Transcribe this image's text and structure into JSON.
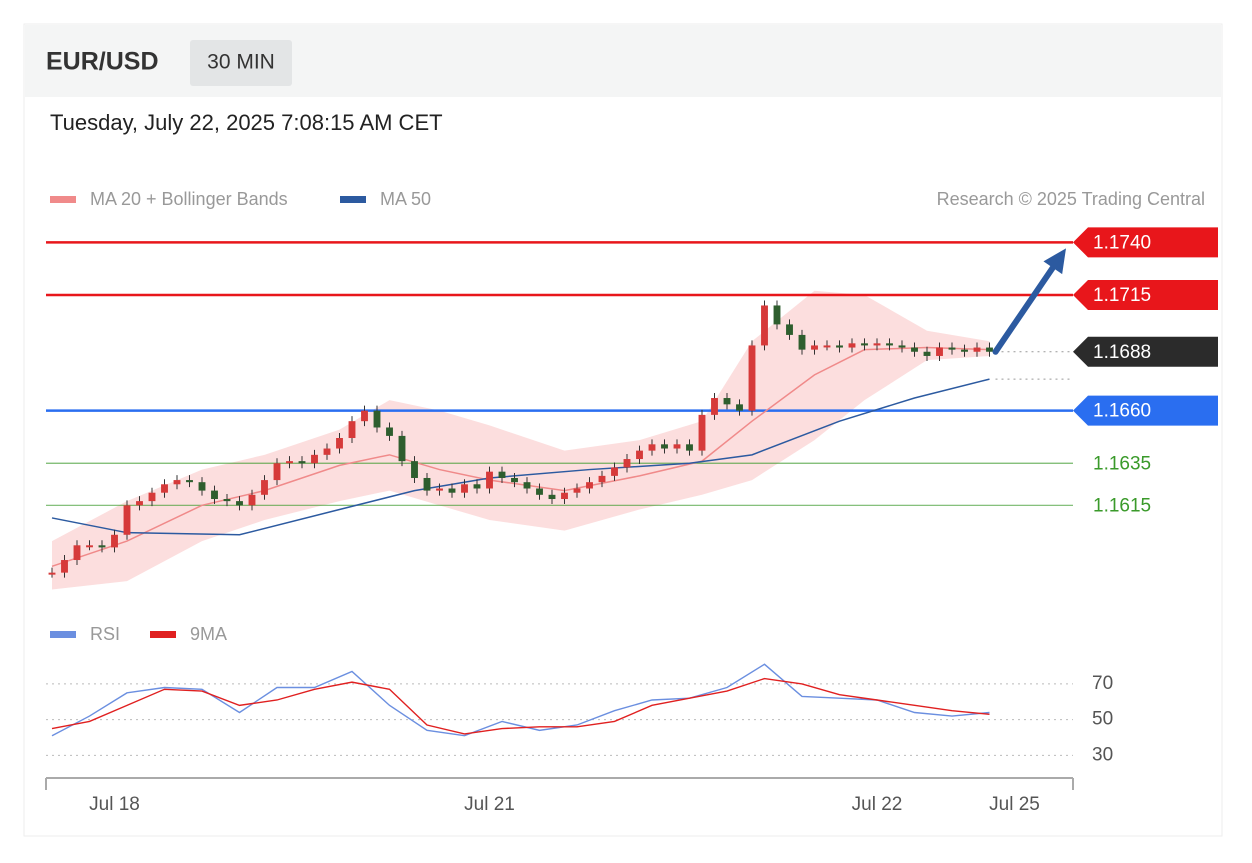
{
  "chart_data": {
    "type": "candlestick",
    "title": "EUR/USD",
    "timeframe": "30 MIN",
    "subtitle": "Tuesday, July 22, 2025 7:08:15 AM CET",
    "credit": "Research © 2025 Trading Central",
    "xlim": [
      0,
      82
    ],
    "xticks": [
      {
        "value": 5,
        "label": "Jul 18"
      },
      {
        "value": 35,
        "label": "Jul 21"
      },
      {
        "value": 66,
        "label": "Jul 22"
      },
      {
        "value": 77,
        "label": "Jul 25"
      }
    ],
    "ylim": [
      1.157,
      1.1753
    ],
    "up_color": "#d63a3a",
    "down_color": "#2e5e2e",
    "close": [
      1.1583,
      1.1589,
      1.1596,
      1.1596,
      1.1595,
      1.1601,
      1.1615,
      1.1617,
      1.1621,
      1.1625,
      1.1627,
      1.1626,
      1.1622,
      1.1618,
      1.1617,
      1.1615,
      1.162,
      1.1627,
      1.1635,
      1.1636,
      1.1635,
      1.1639,
      1.1642,
      1.1647,
      1.1655,
      1.166,
      1.1652,
      1.1648,
      1.1636,
      1.1628,
      1.1622,
      1.1623,
      1.1621,
      1.1625,
      1.1623,
      1.1631,
      1.1628,
      1.1626,
      1.1623,
      1.162,
      1.1618,
      1.1621,
      1.1623,
      1.1626,
      1.1629,
      1.1633,
      1.1637,
      1.1641,
      1.1644,
      1.1642,
      1.1644,
      1.1641,
      1.1658,
      1.1666,
      1.1663,
      1.166,
      1.1691,
      1.171,
      1.1701,
      1.1696,
      1.1689,
      1.1691,
      1.1691,
      1.169,
      1.1692,
      1.1691,
      1.1692,
      1.1691,
      1.169,
      1.1688,
      1.1686,
      1.169,
      1.1689,
      1.1688,
      1.169,
      1.1688
    ],
    "overlays": [
      {
        "name": "MA 20 + Bollinger Bands",
        "color": "#f08a8a",
        "band_color": "#fbd3d3",
        "x": [
          0,
          6,
          12,
          17,
          23,
          27,
          31,
          35,
          41,
          47,
          52,
          56,
          61,
          65,
          70,
          75
        ],
        "values": [
          1.1586,
          1.1598,
          1.1615,
          1.1622,
          1.1634,
          1.1639,
          1.1632,
          1.1627,
          1.1622,
          1.1629,
          1.1636,
          1.1655,
          1.1677,
          1.1689,
          1.169,
          1.1689
        ],
        "upper": [
          1.1598,
          1.1617,
          1.1632,
          1.1639,
          1.1651,
          1.1665,
          1.166,
          1.1653,
          1.1641,
          1.1646,
          1.1655,
          1.1693,
          1.1717,
          1.1715,
          1.1698,
          1.1693
        ],
        "lower": [
          1.1575,
          1.1579,
          1.1598,
          1.1608,
          1.1617,
          1.1622,
          1.1615,
          1.1608,
          1.1603,
          1.1613,
          1.162,
          1.1627,
          1.1646,
          1.1665,
          1.1684,
          1.1686
        ]
      },
      {
        "name": "MA 50",
        "color": "#2c5aa0",
        "x": [
          0,
          6,
          15,
          23,
          29,
          35,
          43,
          51,
          56,
          63,
          69,
          75
        ],
        "values": [
          1.1609,
          1.1602,
          1.1601,
          1.1613,
          1.1622,
          1.1628,
          1.1632,
          1.1635,
          1.1639,
          1.1655,
          1.1666,
          1.1675
        ]
      }
    ],
    "levels": [
      {
        "value": 1.174,
        "label": "1.1740",
        "color": "#e8161b",
        "tag": true,
        "line": "solid"
      },
      {
        "value": 1.1715,
        "color": "#e8161b",
        "tag": true,
        "line": "solid"
      },
      {
        "value": 1.1688,
        "color": "#2b2b2b",
        "tag": true,
        "line": "dotted"
      },
      {
        "value": 1.166,
        "label": "1.1660",
        "color": "#2a6ef0",
        "tag": true,
        "line": "solid"
      },
      {
        "value": 1.1635,
        "color": "#3a9a2a",
        "tag": false,
        "line": "solid"
      },
      {
        "value": 1.1615,
        "color": "#3a9a2a",
        "tag": false,
        "line": "solid"
      }
    ],
    "rsi": {
      "ylim": [
        19,
        89
      ],
      "yticks": [
        30,
        50,
        70
      ],
      "series": [
        {
          "name": "RSI",
          "color": "#6b8fe0",
          "x": [
            0,
            3,
            6,
            9,
            12,
            15,
            18,
            21,
            24,
            27,
            30,
            33,
            36,
            39,
            42,
            45,
            48,
            51,
            54,
            57,
            60,
            63,
            66,
            69,
            72,
            75
          ],
          "values": [
            41,
            52,
            65,
            68,
            67,
            54,
            68,
            68,
            77,
            58,
            44,
            41,
            49,
            44,
            47,
            55,
            61,
            62,
            68,
            81,
            63,
            62,
            61,
            54,
            52,
            54
          ]
        },
        {
          "name": "9MA",
          "color": "#e02020",
          "x": [
            0,
            3,
            6,
            9,
            12,
            15,
            18,
            21,
            24,
            27,
            30,
            33,
            36,
            39,
            42,
            45,
            48,
            51,
            54,
            57,
            60,
            63,
            66,
            69,
            72,
            75
          ],
          "values": [
            45,
            49,
            58,
            67,
            66,
            58,
            61,
            67,
            71,
            67,
            47,
            42,
            45,
            46,
            46,
            49,
            58,
            62,
            66,
            73,
            70,
            64,
            61,
            58,
            55,
            53
          ]
        }
      ]
    }
  }
}
